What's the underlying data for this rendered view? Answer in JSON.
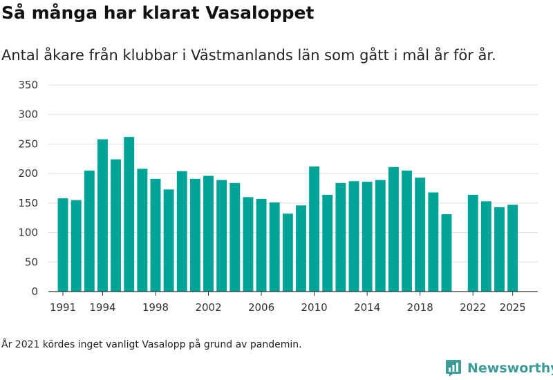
{
  "header": {
    "title": "Så många har klarat Vasaloppet",
    "subtitle": "Antal åkare från klubbar i Västmanlands län som gått i mål år för år."
  },
  "footer": {
    "note": "År 2021 kördes inget vanligt Vasalopp på grund av pandemin.",
    "brand": "Newsworthy"
  },
  "colors": {
    "bar": "#00a397",
    "grid": "#dddddd",
    "axis": "#333333",
    "brand": "#3d9c97"
  },
  "chart_data": {
    "type": "bar",
    "title": "Så många har klarat Vasaloppet",
    "subtitle": "Antal åkare från klubbar i Västmanlands län som gått i mål år för år.",
    "xlabel": "",
    "ylabel": "",
    "ylim": [
      0,
      350
    ],
    "yticks": [
      0,
      50,
      100,
      150,
      200,
      250,
      300,
      350
    ],
    "xticks": [
      1991,
      1994,
      1998,
      2002,
      2006,
      2010,
      2014,
      2018,
      2022,
      2025
    ],
    "xlim": [
      1989.9,
      2026.9
    ],
    "grid": true,
    "legend": "none",
    "categories": [
      1991,
      1992,
      1993,
      1994,
      1995,
      1996,
      1997,
      1998,
      1999,
      2000,
      2001,
      2002,
      2003,
      2004,
      2005,
      2006,
      2007,
      2008,
      2009,
      2010,
      2011,
      2012,
      2013,
      2014,
      2015,
      2016,
      2017,
      2018,
      2019,
      2020,
      2021,
      2022,
      2023,
      2024,
      2025
    ],
    "values": [
      158,
      155,
      205,
      258,
      224,
      262,
      208,
      191,
      173,
      204,
      191,
      196,
      189,
      184,
      160,
      157,
      151,
      132,
      146,
      212,
      164,
      184,
      187,
      186,
      189,
      211,
      205,
      193,
      168,
      131,
      null,
      164,
      153,
      143,
      147
    ]
  }
}
